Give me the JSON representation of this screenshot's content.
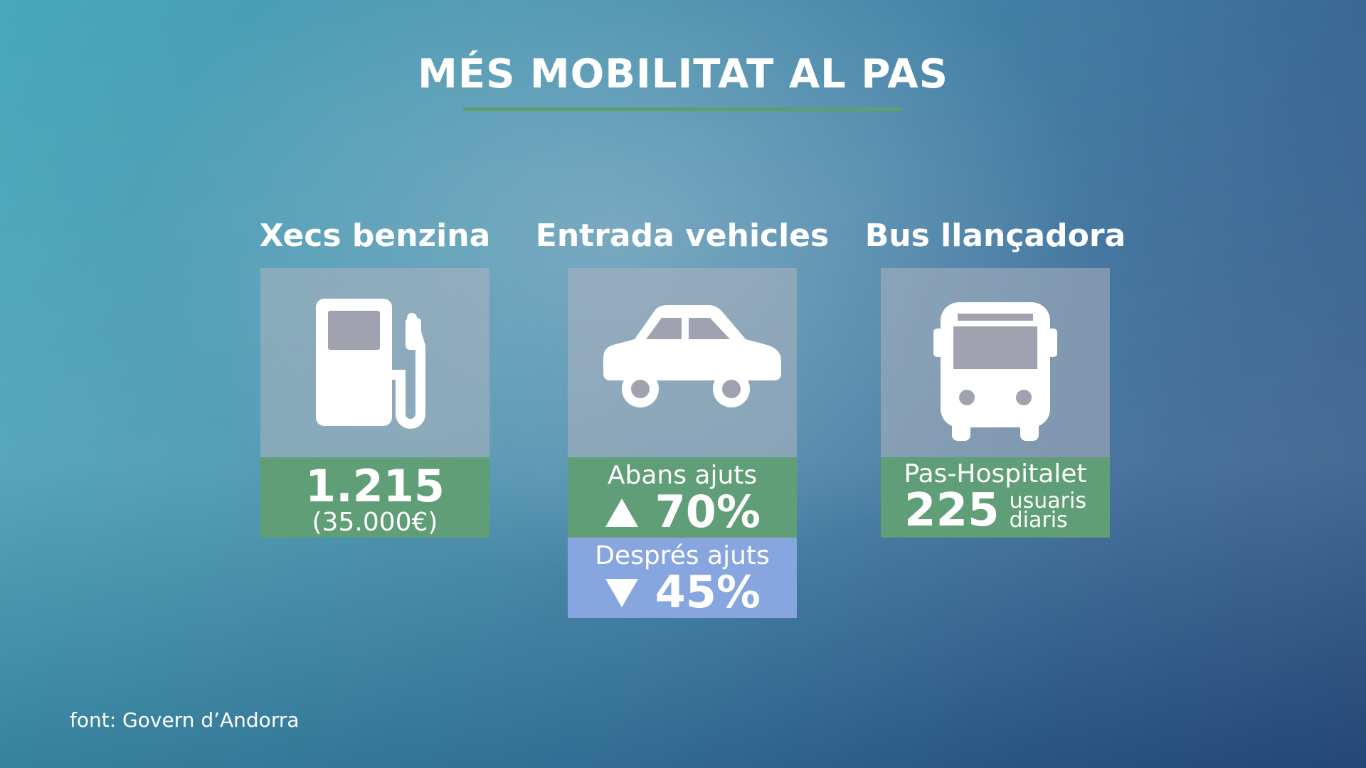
{
  "title": "MÉS MOBILITAT AL PAS",
  "columns": [
    {
      "heading": "Xecs benzina",
      "value": "1.215",
      "detail": "(35.000€)"
    },
    {
      "heading": "Entrada vehicles",
      "before": {
        "label": "Abans ajuts",
        "value": "70%"
      },
      "after": {
        "label": "Després ajuts",
        "value": "45%"
      }
    },
    {
      "heading": "Bus llançadora",
      "label": "Pas-Hospitalet",
      "value": "225",
      "unit": [
        "usuaris",
        "diaris"
      ]
    }
  ],
  "source": "font: Govern d’Andorra"
}
